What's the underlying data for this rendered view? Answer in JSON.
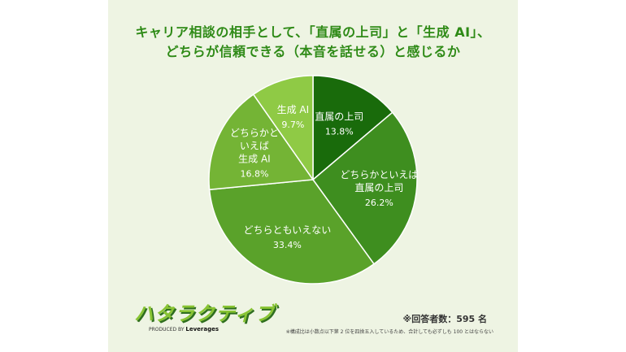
{
  "title_lines": [
    "キャリア相談の相手として、「直属の上司」と「生成 AI」、",
    "どちらが信頼できる（本音を話せる）と感じるか"
  ],
  "chart_data": {
    "type": "pie",
    "slices": [
      {
        "label": "直属の上司",
        "label_lines": [
          "直属の上司"
        ],
        "value": 13.8,
        "value_text": "13.8%",
        "color": "#196b0b"
      },
      {
        "label": "どちらかといえば直属の上司",
        "label_lines": [
          "どちらかといえば",
          "直属の上司"
        ],
        "value": 26.2,
        "value_text": "26.2%",
        "color": "#3e8e1f"
      },
      {
        "label": "どちらともいえない",
        "label_lines": [
          "どちらともいえない"
        ],
        "value": 33.4,
        "value_text": "33.4%",
        "color": "#5aa22a"
      },
      {
        "label": "どちらかといえば生成 AI",
        "label_lines": [
          "どちらかと",
          "いえば",
          "生成 AI"
        ],
        "value": 16.8,
        "value_text": "16.8%",
        "color": "#74b435"
      },
      {
        "label": "生成 AI",
        "label_lines": [
          "生成 AI"
        ],
        "value": 9.7,
        "value_text": "9.7%",
        "color": "#8fca45"
      }
    ],
    "start_angle_deg": 0,
    "direction": "clockwise"
  },
  "logo": {
    "text": "ハタラクティブ",
    "produced_by": "PRODUCED BY",
    "brand": "Leverages"
  },
  "respondents": "※回答者数：595 名",
  "footnote": "※構成比は小数点以下第 2 位を四捨五入しているため、合計しても必ずしも 100 とはならない"
}
